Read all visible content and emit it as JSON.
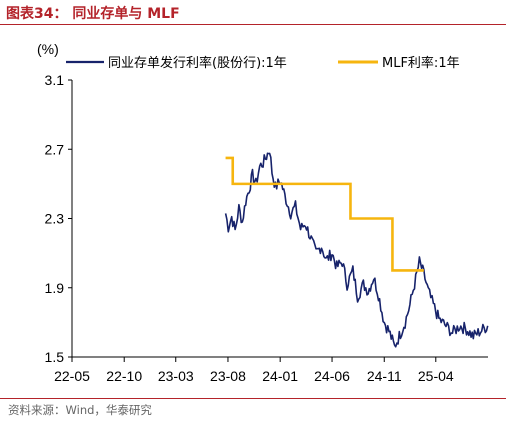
{
  "figure": {
    "title": "图表34： 同业存单与 MLF",
    "source": "资料来源：Wind，华泰研究"
  },
  "chart_data": {
    "type": "line",
    "unit_label": "(%)",
    "ylim": [
      1.5,
      3.1
    ],
    "y_ticks": [
      "3.1",
      "2.7",
      "2.3",
      "1.9",
      "1.5"
    ],
    "x_ticks": [
      "22-05",
      "22-10",
      "23-03",
      "23-08",
      "24-01",
      "24-06",
      "24-11",
      "25-04"
    ],
    "x_range": [
      "2022-05",
      "2025-09"
    ],
    "grid": false,
    "legend_position": "top",
    "series": [
      {
        "name": "同业存单发行利率(股份行):1年",
        "color": "#17236b",
        "style": "line",
        "points": [
          [
            "2023-07-25",
            2.33
          ],
          [
            "2023-08-02",
            2.25
          ],
          [
            "2023-08-12",
            2.31
          ],
          [
            "2023-08-22",
            2.23
          ],
          [
            "2023-09-02",
            2.36
          ],
          [
            "2023-09-12",
            2.28
          ],
          [
            "2023-09-22",
            2.4
          ],
          [
            "2023-10-02",
            2.47
          ],
          [
            "2023-10-12",
            2.55
          ],
          [
            "2023-10-22",
            2.5
          ],
          [
            "2023-11-02",
            2.6
          ],
          [
            "2023-11-12",
            2.62
          ],
          [
            "2023-11-22",
            2.66
          ],
          [
            "2023-12-01",
            2.7
          ],
          [
            "2023-12-08",
            2.57
          ],
          [
            "2023-12-18",
            2.48
          ],
          [
            "2024-01-02",
            2.52
          ],
          [
            "2024-01-15",
            2.43
          ],
          [
            "2024-02-01",
            2.33
          ],
          [
            "2024-02-15",
            2.37
          ],
          [
            "2024-03-01",
            2.24
          ],
          [
            "2024-03-15",
            2.27
          ],
          [
            "2024-04-01",
            2.18
          ],
          [
            "2024-04-15",
            2.1
          ],
          [
            "2024-05-01",
            2.14
          ],
          [
            "2024-05-15",
            2.06
          ],
          [
            "2024-06-01",
            2.1
          ],
          [
            "2024-06-15",
            2.02
          ],
          [
            "2024-07-01",
            2.05
          ],
          [
            "2024-07-15",
            1.92
          ],
          [
            "2024-08-01",
            2.0
          ],
          [
            "2024-08-15",
            1.85
          ],
          [
            "2024-09-01",
            1.92
          ],
          [
            "2024-09-15",
            1.88
          ],
          [
            "2024-10-01",
            1.96
          ],
          [
            "2024-10-15",
            1.86
          ],
          [
            "2024-11-01",
            1.7
          ],
          [
            "2024-11-15",
            1.65
          ],
          [
            "2024-12-01",
            1.56
          ],
          [
            "2024-12-15",
            1.62
          ],
          [
            "2025-01-01",
            1.7
          ],
          [
            "2025-01-15",
            1.8
          ],
          [
            "2025-02-01",
            1.95
          ],
          [
            "2025-02-12",
            2.05
          ],
          [
            "2025-02-25",
            1.98
          ],
          [
            "2025-03-10",
            1.88
          ],
          [
            "2025-03-25",
            1.8
          ],
          [
            "2025-04-10",
            1.72
          ],
          [
            "2025-05-01",
            1.68
          ],
          [
            "2025-05-20",
            1.64
          ],
          [
            "2025-06-10",
            1.68
          ],
          [
            "2025-06-30",
            1.66
          ],
          [
            "2025-07-20",
            1.62
          ],
          [
            "2025-08-10",
            1.65
          ],
          [
            "2025-08-31",
            1.68
          ]
        ]
      },
      {
        "name": "MLF利率:1年",
        "color": "#f6b50f",
        "style": "step",
        "points": [
          [
            "2023-07-25",
            2.65
          ],
          [
            "2023-08-15",
            2.5
          ],
          [
            "2024-07-25",
            2.3
          ],
          [
            "2024-11-25",
            2.0
          ],
          [
            "2025-02-25",
            2.0
          ]
        ]
      }
    ]
  }
}
